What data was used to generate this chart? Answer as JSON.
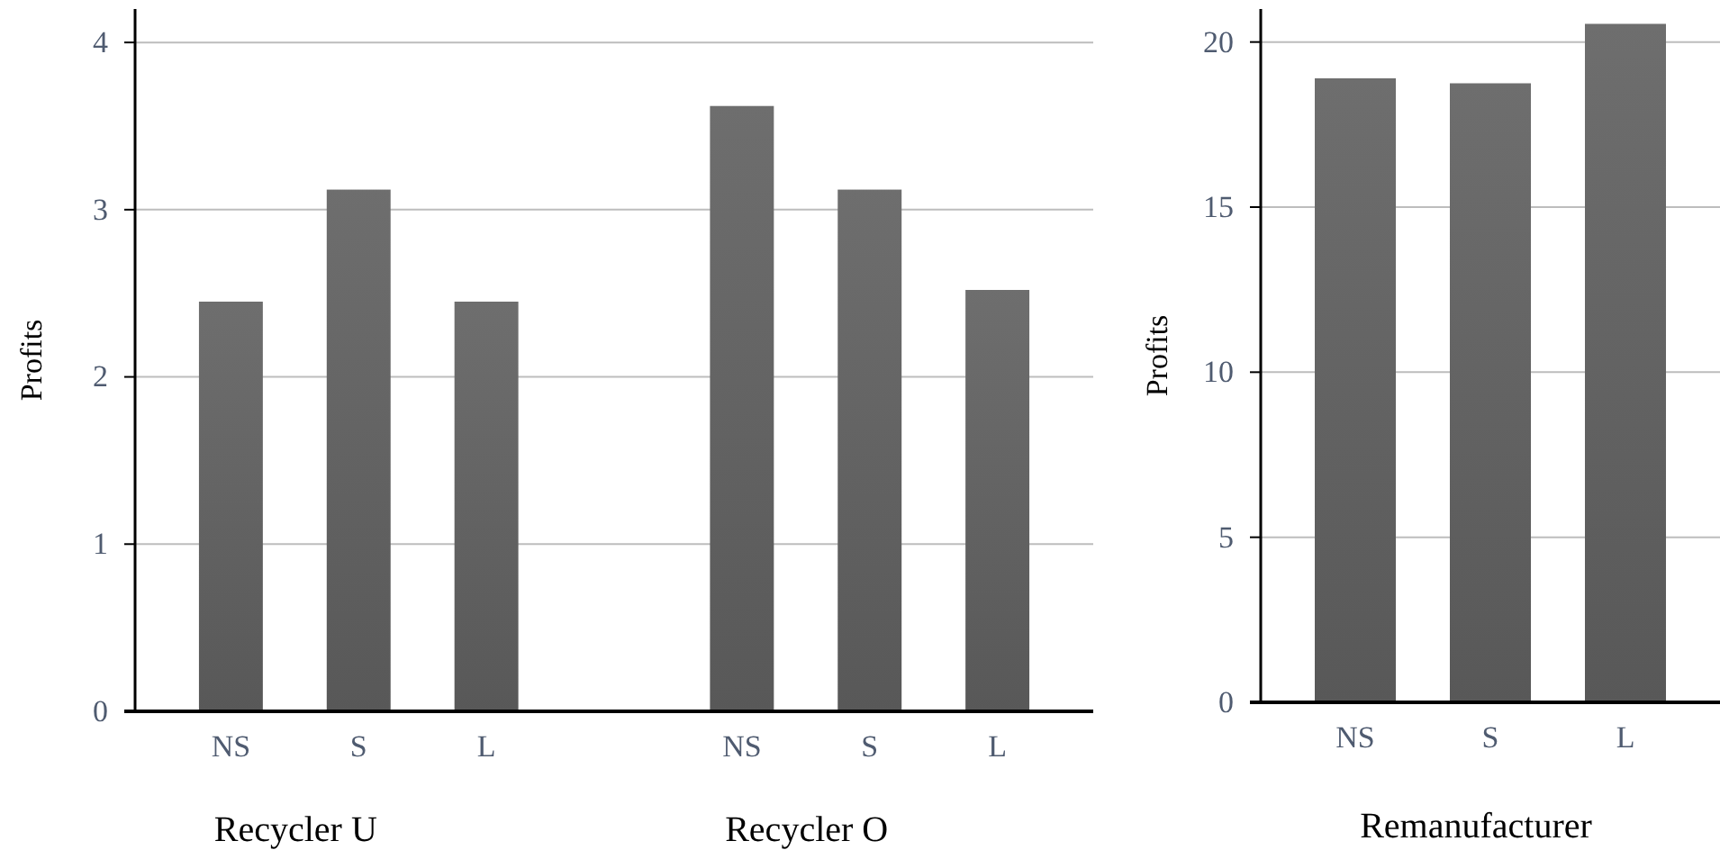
{
  "chart_data": [
    {
      "type": "bar",
      "ylabel": "Profits",
      "categories": [
        "NS",
        "S",
        "L",
        null,
        "NS",
        "S",
        "L"
      ],
      "values": [
        2.45,
        3.12,
        2.45,
        null,
        3.62,
        3.12,
        2.52
      ],
      "color": "#5f5f5f",
      "ylim": [
        0,
        4.2
      ],
      "yticks": [
        0,
        1,
        2,
        3,
        4
      ],
      "grid": "y",
      "annotations": [
        "Recycler U",
        "Recycler O"
      ]
    },
    {
      "type": "bar",
      "ylabel": "Profits",
      "xlabel": "Remanufacturer",
      "categories": [
        "NS",
        "S",
        "L"
      ],
      "values": [
        18.9,
        18.75,
        20.55
      ],
      "color": "#5f5f5f",
      "ylim": [
        0,
        21
      ],
      "yticks": [
        0,
        5,
        10,
        15,
        20
      ],
      "grid": "y"
    }
  ]
}
